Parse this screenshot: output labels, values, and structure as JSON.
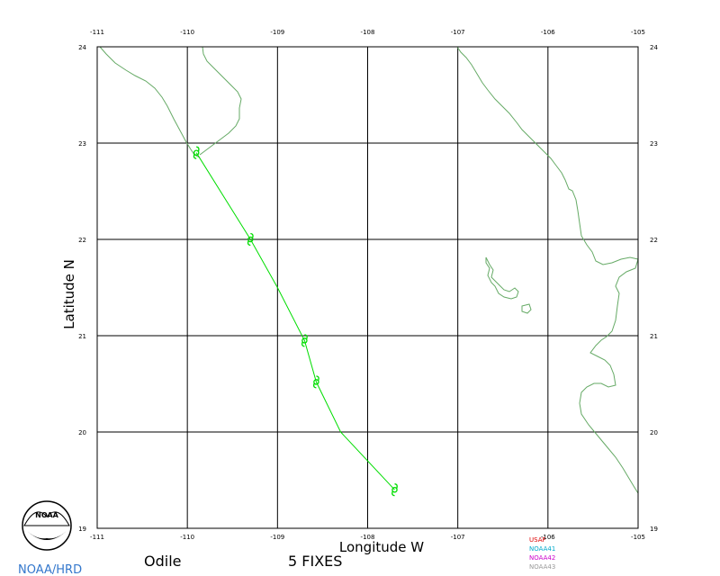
{
  "map": {
    "lon_range": [
      -111,
      -105
    ],
    "lat_range": [
      19,
      24
    ],
    "lon_ticks": [
      -111,
      -110,
      -109,
      -108,
      -107,
      -106,
      -105
    ],
    "lat_ticks": [
      19,
      20,
      21,
      22,
      23,
      24
    ],
    "lon_tick_labels": [
      "-111",
      "-110",
      "-109",
      "-108",
      "-107",
      "-106",
      "-105"
    ],
    "lat_tick_labels": [
      "19",
      "20",
      "21",
      "22",
      "23",
      "24"
    ],
    "xlabel": "Longitude W",
    "ylabel": "Latitude N",
    "grid": true,
    "coastline_color": "#66aa66",
    "track_color": "#00dd00"
  },
  "storm": {
    "name": "Odile",
    "fixes_label": "5 FIXES",
    "fix_symbol": "hurricane-symbol",
    "fixes": [
      {
        "lon": -109.9,
        "lat": 22.9
      },
      {
        "lon": -109.3,
        "lat": 22.0
      },
      {
        "lon": -108.7,
        "lat": 20.95
      },
      {
        "lon": -108.57,
        "lat": 20.52
      },
      {
        "lon": -107.7,
        "lat": 19.4
      }
    ],
    "track": [
      {
        "lon": -109.9,
        "lat": 22.9
      },
      {
        "lon": -109.3,
        "lat": 22.0
      },
      {
        "lon": -109.0,
        "lat": 21.5
      },
      {
        "lon": -108.7,
        "lat": 20.95
      },
      {
        "lon": -108.57,
        "lat": 20.52
      },
      {
        "lon": -108.3,
        "lat": 20.0
      },
      {
        "lon": -107.7,
        "lat": 19.4
      }
    ]
  },
  "legend": {
    "items": [
      {
        "label": "USAF",
        "color": "#dd0000"
      },
      {
        "label": "NOAA41",
        "color": "#00aacc"
      },
      {
        "label": "NOAA42",
        "color": "#cc00cc"
      },
      {
        "label": "NOAA43",
        "color": "#999999"
      }
    ]
  },
  "credit": {
    "logo_text": "NOAA",
    "label": "NOAA/HRD",
    "color": "#3377cc"
  }
}
